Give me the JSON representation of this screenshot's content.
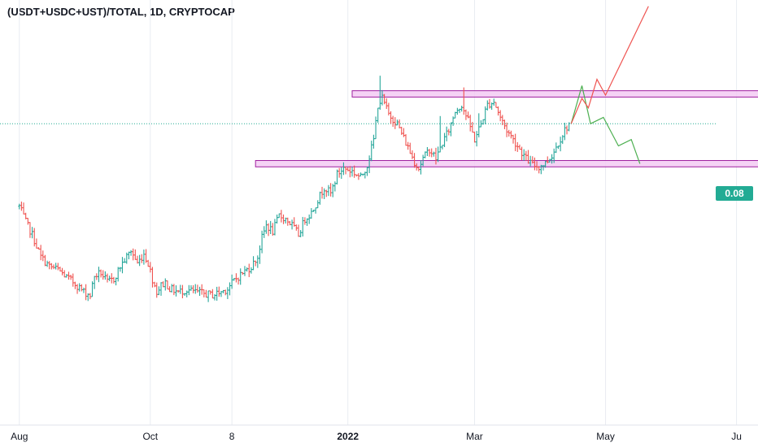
{
  "chart_data": {
    "type": "ohlc",
    "title": "(USDT+USDC+UST)/TOTAL, 1D, CRYPTOCAP",
    "symbol": "(USDT+USDC+UST)/TOTAL",
    "interval": "1D",
    "exchange": "CRYPTOCAP",
    "last_price": "0.08",
    "x_tick_labels": [
      "Aug",
      "Oct",
      "8",
      "2022",
      "Mar",
      "May",
      "Ju"
    ],
    "x_tick_days": [
      0,
      61,
      99,
      153,
      212,
      273,
      334
    ],
    "x_tick_bold": [
      false,
      false,
      false,
      true,
      false,
      false,
      false
    ],
    "x_range_days": [
      -9,
      344
    ],
    "y_range": [
      0.0325,
      0.0995
    ],
    "last_price_value": 0.08,
    "grid": true,
    "colors": {
      "up": "#26a69a",
      "down": "#ef5350",
      "zone": "#a020a0",
      "zone_fill": "#f2c8f2",
      "red_path": "#ef5350",
      "green_path": "#4caf50",
      "price_line": "#22ab94"
    },
    "anchors": [
      [
        0,
        0.067
      ],
      [
        3,
        0.0645
      ],
      [
        6,
        0.0625
      ],
      [
        10,
        0.059
      ],
      [
        14,
        0.0575
      ],
      [
        18,
        0.057
      ],
      [
        22,
        0.0558
      ],
      [
        26,
        0.0548
      ],
      [
        30,
        0.0535
      ],
      [
        33,
        0.053
      ],
      [
        35,
        0.056
      ],
      [
        38,
        0.0565
      ],
      [
        41,
        0.055
      ],
      [
        44,
        0.0555
      ],
      [
        47,
        0.0575
      ],
      [
        50,
        0.059
      ],
      [
        52,
        0.06
      ],
      [
        55,
        0.058
      ],
      [
        58,
        0.0595
      ],
      [
        60,
        0.058
      ],
      [
        62,
        0.0555
      ],
      [
        64,
        0.0535
      ],
      [
        66,
        0.0545
      ],
      [
        68,
        0.055
      ],
      [
        70,
        0.054
      ],
      [
        74,
        0.0535
      ],
      [
        78,
        0.0538
      ],
      [
        82,
        0.0535
      ],
      [
        86,
        0.0532
      ],
      [
        90,
        0.053
      ],
      [
        94,
        0.0535
      ],
      [
        97,
        0.054
      ],
      [
        100,
        0.0553
      ],
      [
        104,
        0.0565
      ],
      [
        108,
        0.0575
      ],
      [
        111,
        0.059
      ],
      [
        113,
        0.062
      ],
      [
        115,
        0.064
      ],
      [
        118,
        0.063
      ],
      [
        121,
        0.0655
      ],
      [
        124,
        0.065
      ],
      [
        127,
        0.064
      ],
      [
        130,
        0.0625
      ],
      [
        133,
        0.065
      ],
      [
        136,
        0.066
      ],
      [
        139,
        0.068
      ],
      [
        142,
        0.07
      ],
      [
        145,
        0.069
      ],
      [
        148,
        0.072
      ],
      [
        151,
        0.073
      ],
      [
        155,
        0.0725
      ],
      [
        159,
        0.0715
      ],
      [
        162,
        0.0735
      ],
      [
        165,
        0.0775
      ],
      [
        167,
        0.083
      ],
      [
        169,
        0.084
      ],
      [
        172,
        0.0815
      ],
      [
        176,
        0.08
      ],
      [
        180,
        0.077
      ],
      [
        184,
        0.074
      ],
      [
        186,
        0.073
      ],
      [
        188,
        0.0745
      ],
      [
        191,
        0.076
      ],
      [
        194,
        0.0745
      ],
      [
        197,
        0.077
      ],
      [
        200,
        0.079
      ],
      [
        203,
        0.082
      ],
      [
        206,
        0.083
      ],
      [
        209,
        0.0805
      ],
      [
        212,
        0.0775
      ],
      [
        215,
        0.08
      ],
      [
        218,
        0.083
      ],
      [
        221,
        0.0835
      ],
      [
        224,
        0.081
      ],
      [
        227,
        0.079
      ],
      [
        230,
        0.0775
      ],
      [
        233,
        0.076
      ],
      [
        236,
        0.0745
      ],
      [
        239,
        0.0735
      ],
      [
        242,
        0.0732
      ],
      [
        245,
        0.0738
      ],
      [
        248,
        0.075
      ],
      [
        251,
        0.077
      ],
      [
        254,
        0.079
      ],
      [
        256,
        0.08
      ]
    ],
    "zones": [
      {
        "name": "resistance",
        "day_start": 155,
        "day_end": 345,
        "price_top": 0.0852,
        "price_bottom": 0.0842
      },
      {
        "name": "support",
        "day_start": 110,
        "day_end": 346,
        "price_top": 0.0742,
        "price_bottom": 0.0732
      }
    ],
    "projection_red": [
      [
        257,
        0.08
      ],
      [
        262,
        0.084
      ],
      [
        265,
        0.0825
      ],
      [
        269,
        0.087
      ],
      [
        273,
        0.0845
      ],
      [
        293,
        0.0985
      ]
    ],
    "projection_green": [
      [
        257,
        0.08
      ],
      [
        262,
        0.086
      ],
      [
        266,
        0.08
      ],
      [
        272,
        0.081
      ],
      [
        279,
        0.0765
      ],
      [
        285,
        0.0775
      ],
      [
        289,
        0.0737
      ]
    ]
  }
}
